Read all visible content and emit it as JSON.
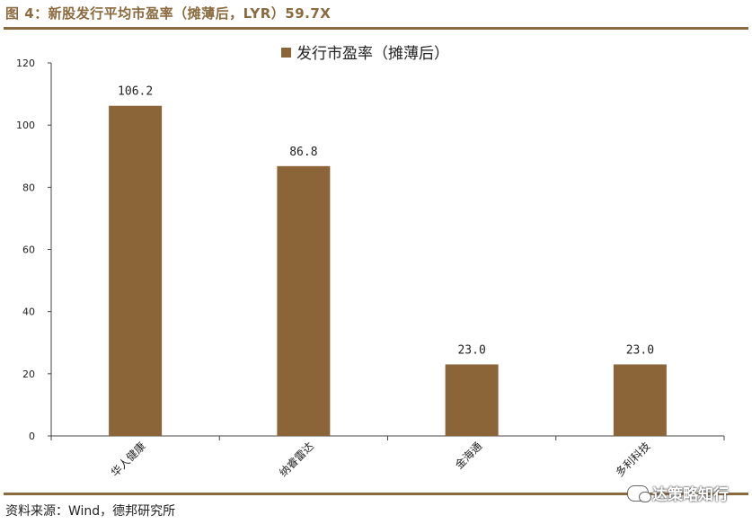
{
  "header": {
    "title": "图 4：新股发行平均市盈率（摊薄后，LYR）59.7X"
  },
  "footer": {
    "source": "资料来源：Wind，德邦研究所"
  },
  "watermark": {
    "text": "达策略知行",
    "icon": "wechat-icon"
  },
  "colors": {
    "accent": "#8b6a3e",
    "bar": "#8b6437"
  },
  "chart_data": {
    "type": "bar",
    "categories": [
      "华人健康",
      "纳睿雷达",
      "金海通",
      "多利科技"
    ],
    "series": [
      {
        "name": "发行市盈率（摊薄后）",
        "values": [
          106.2,
          86.8,
          23.0,
          23.0
        ]
      }
    ],
    "data_labels": [
      "106.2",
      "86.8",
      "23.0",
      "23.0"
    ],
    "ylim": [
      0,
      120
    ],
    "yticks": [
      0,
      20,
      40,
      60,
      80,
      100,
      120
    ],
    "legend": "top-center",
    "grid": false
  }
}
